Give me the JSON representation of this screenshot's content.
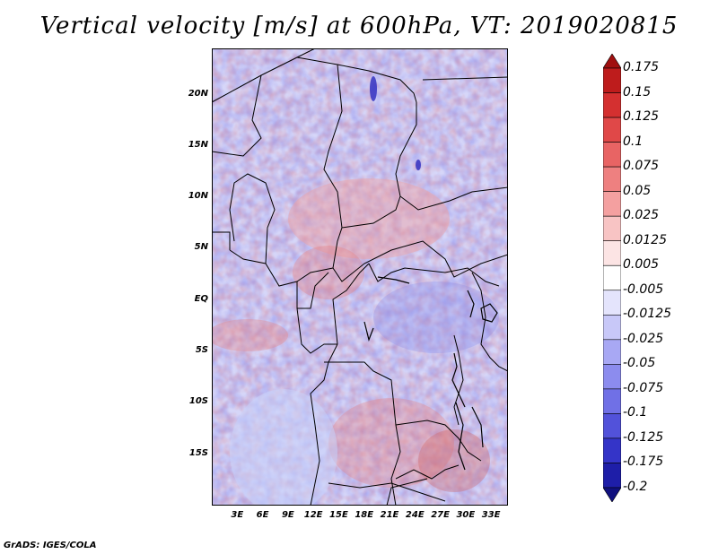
{
  "title": "Vertical velocity [m/s] at 600hPa, VT: 2019020815",
  "footer": "GrADS: IGES/COLA",
  "map": {
    "lat_labels": [
      "20N",
      "15N",
      "10N",
      "5N",
      "EQ",
      "5S",
      "10S",
      "15S"
    ],
    "lon_labels": [
      "3E",
      "6E",
      "9E",
      "12E",
      "15E",
      "18E",
      "21E",
      "24E",
      "27E",
      "30E",
      "33E"
    ],
    "lat_values": [
      20,
      15,
      10,
      5,
      0,
      -5,
      -10,
      -15
    ],
    "lon_values": [
      3,
      6,
      9,
      12,
      15,
      18,
      21,
      24,
      27,
      30,
      33
    ],
    "lon_range": [
      0,
      35
    ],
    "lat_range": [
      -20,
      24.5
    ]
  },
  "colorbar": {
    "labels": [
      "0.175",
      "0.15",
      "0.125",
      "0.1",
      "0.075",
      "0.05",
      "0.025",
      "0.0125",
      "0.005",
      "-0.005",
      "-0.0125",
      "-0.025",
      "-0.05",
      "-0.075",
      "-0.1",
      "-0.125",
      "-0.175",
      "-0.2"
    ],
    "colors": [
      "#a01010",
      "#be1c1c",
      "#d43030",
      "#e04848",
      "#e86464",
      "#ee8080",
      "#f4a0a0",
      "#f8c4c4",
      "#fce4e4",
      "#ffffff",
      "#e4e4fc",
      "#c8c8f8",
      "#a8a8f4",
      "#8c8cee",
      "#7070e6",
      "#5252da",
      "#3434c8",
      "#1e1ea8",
      "#10107e"
    ]
  }
}
